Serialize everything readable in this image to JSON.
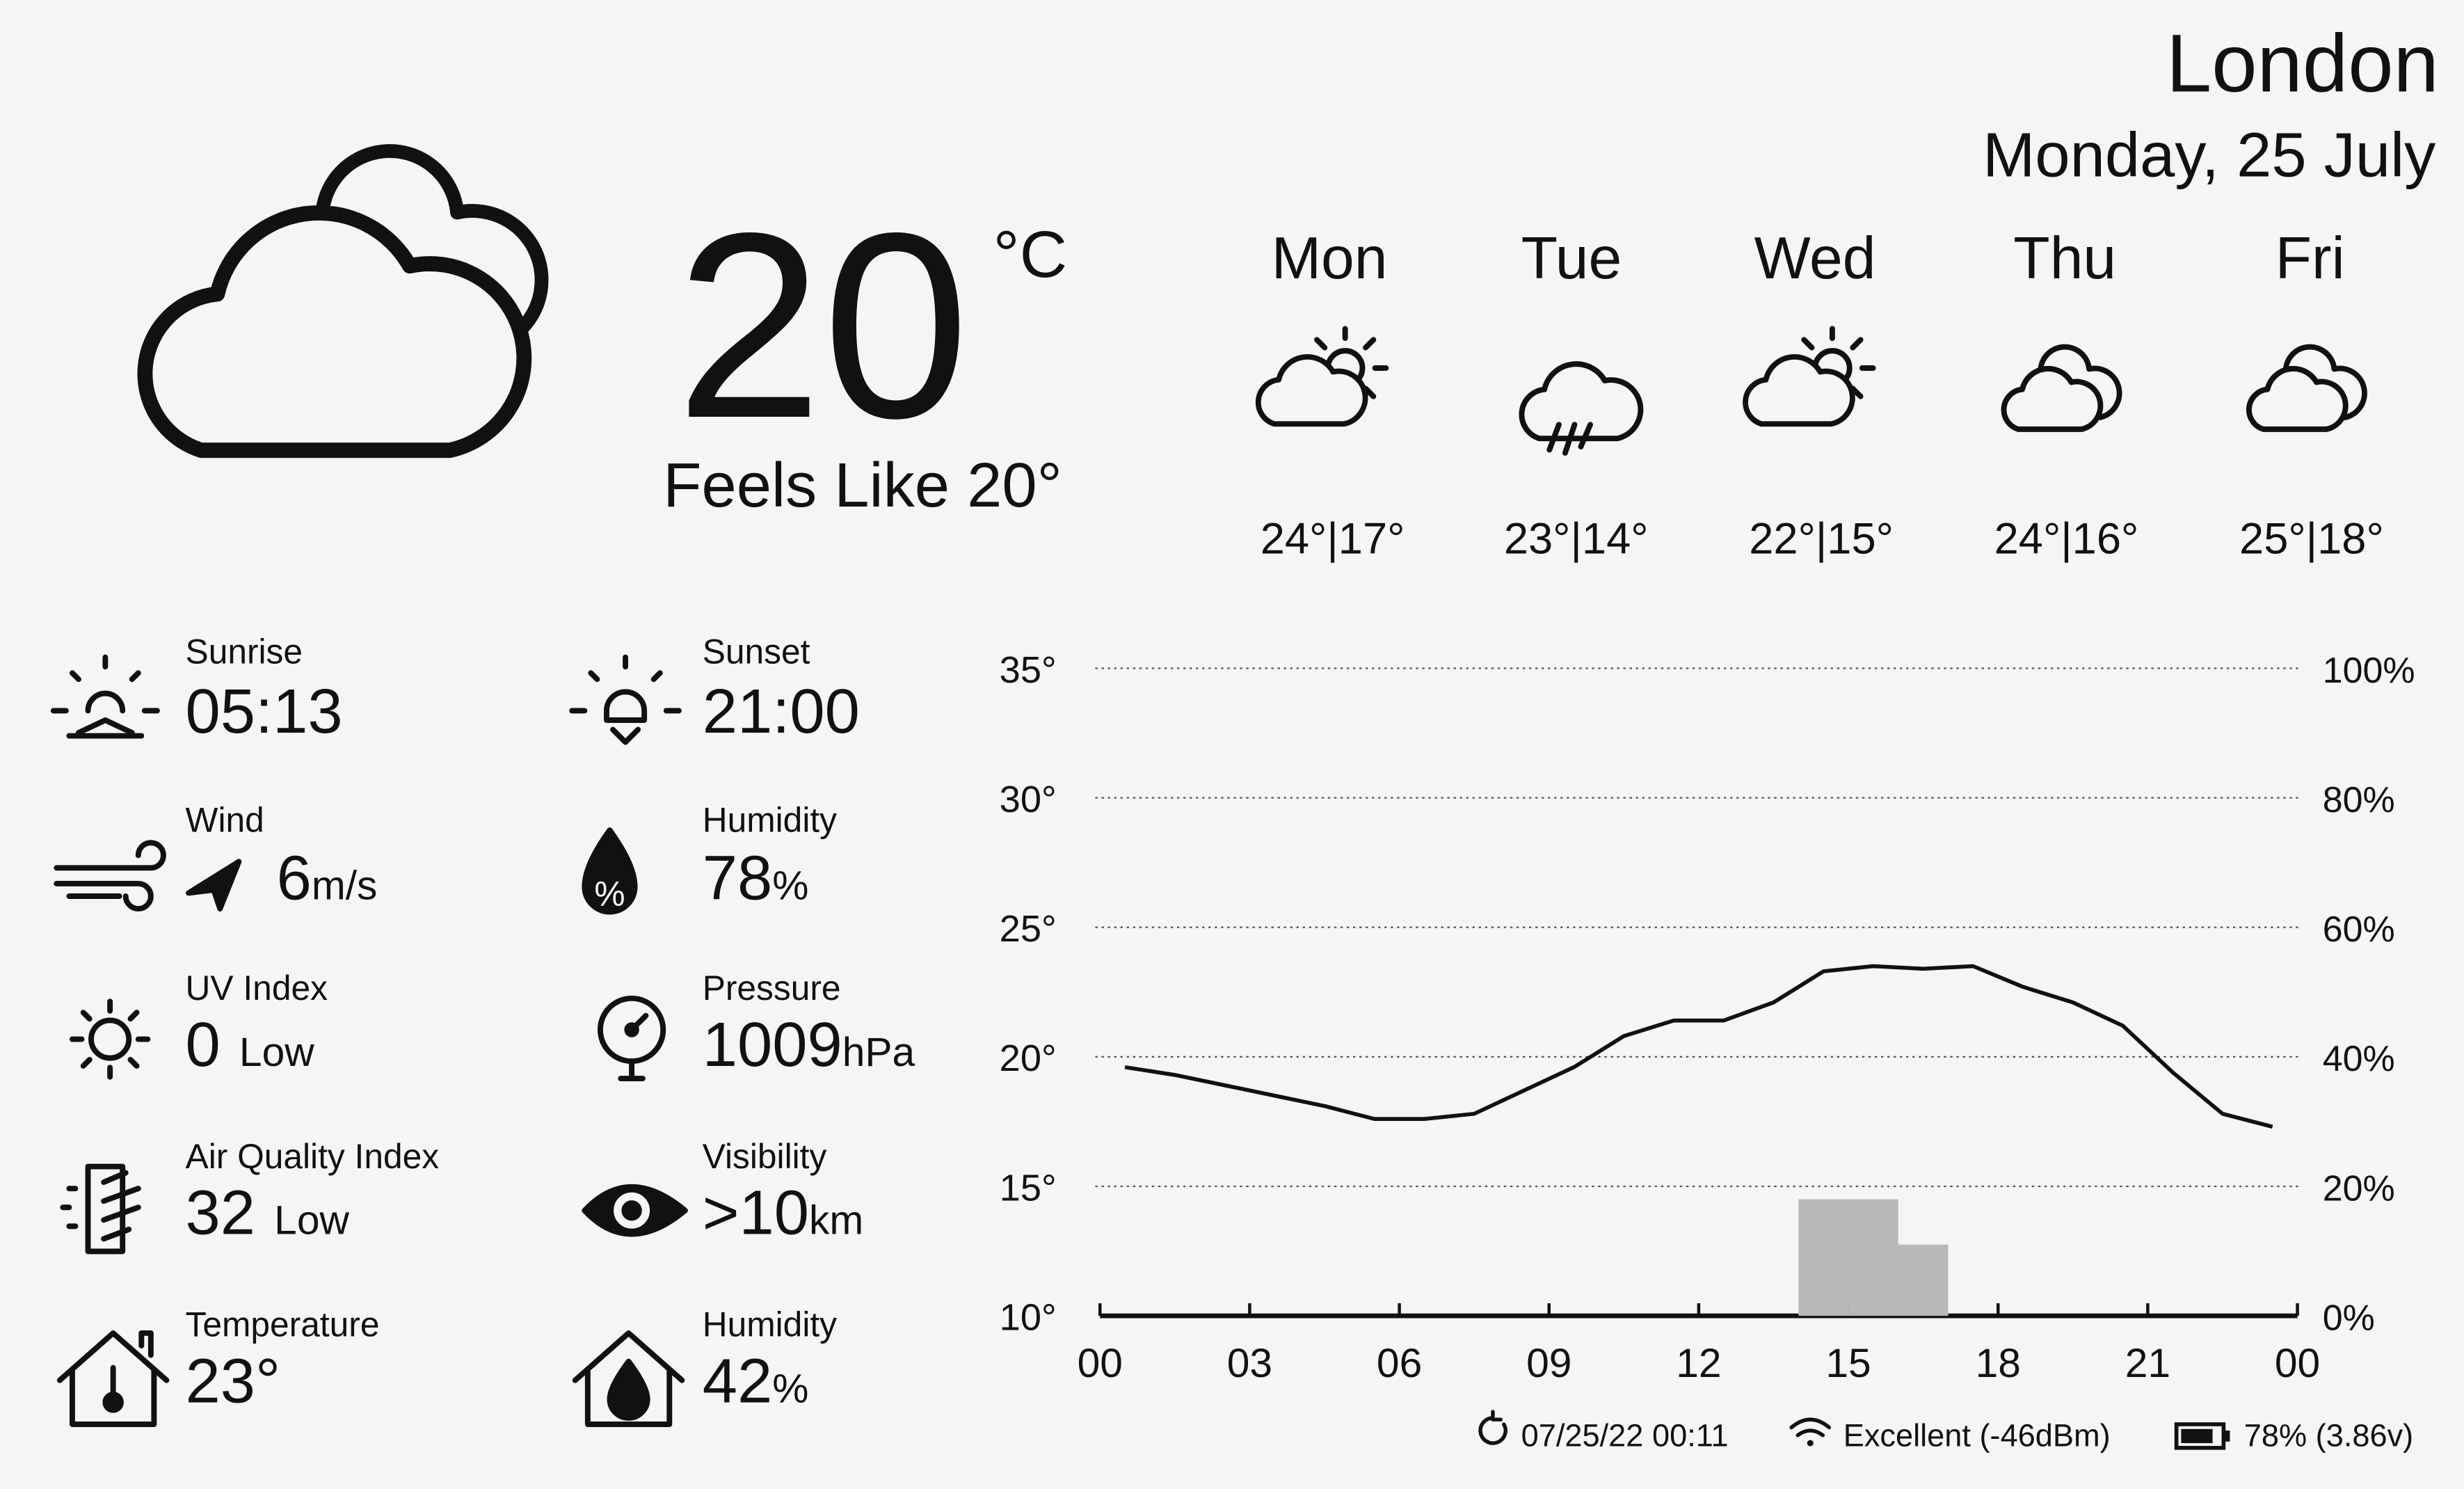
{
  "header": {
    "city": "London",
    "date": "Monday, 25 July"
  },
  "current": {
    "temperature": "20",
    "unit": "°C",
    "feels_like": "Feels Like 20°"
  },
  "forecast": [
    {
      "day": "Mon",
      "temps": "24°|17°"
    },
    {
      "day": "Tue",
      "temps": "23°|14°"
    },
    {
      "day": "Wed",
      "temps": "22°|15°"
    },
    {
      "day": "Thu",
      "temps": "24°|16°"
    },
    {
      "day": "Fri",
      "temps": "25°|18°"
    }
  ],
  "details": [
    {
      "label": "Sunrise",
      "value": "05:13"
    },
    {
      "label": "Sunset",
      "value": "21:00"
    },
    {
      "label": "Wind",
      "value": "6",
      "unit": "m/s"
    },
    {
      "label": "Humidity",
      "value": "78",
      "unit": "%"
    },
    {
      "label": "UV Index",
      "value": "0",
      "level": "Low"
    },
    {
      "label": "Pressure",
      "value": "1009",
      "unit": "hPa"
    },
    {
      "label": "Air Quality Index",
      "value": "32",
      "level": "Low"
    },
    {
      "label": "Visibility",
      "value": ">10",
      "unit": "km"
    },
    {
      "label": "Temperature",
      "value": "23°"
    },
    {
      "label": "Humidity",
      "value": "42",
      "unit": "%"
    }
  ],
  "chart_data": {
    "type": "line",
    "x": [
      0.5,
      1.5,
      2.5,
      3.5,
      4.5,
      5.5,
      6.5,
      7.5,
      8.5,
      9.5,
      10.5,
      11.5,
      12.5,
      13.5,
      14.5,
      15.5,
      16.5,
      17.5,
      18.5,
      19.5,
      20.5,
      21.5,
      22.5,
      23.5
    ],
    "xlim": [
      0,
      24
    ],
    "xticks": [
      {
        "value": 0,
        "label": "00"
      },
      {
        "value": 3,
        "label": "03"
      },
      {
        "value": 6,
        "label": "06"
      },
      {
        "value": 9,
        "label": "09"
      },
      12,
      15,
      18,
      21,
      {
        "value": 24,
        "label": "00"
      }
    ],
    "ylim": [
      10,
      35
    ],
    "yticks": [
      {
        "value": 10,
        "label": "10°"
      },
      {
        "value": 15,
        "label": "15°"
      },
      {
        "value": 20,
        "label": "20°"
      },
      {
        "value": 25,
        "label": "25°"
      },
      {
        "value": 30,
        "label": "30°"
      },
      {
        "value": 35,
        "label": "35°"
      }
    ],
    "y2lim": [
      0,
      100
    ],
    "y2ticks": [
      {
        "value": 0,
        "label": "0%"
      },
      {
        "value": 20,
        "label": "20%"
      },
      {
        "value": 40,
        "label": "40%"
      },
      {
        "value": 60,
        "label": "60%"
      },
      {
        "value": 80,
        "label": "80%"
      },
      {
        "value": 100,
        "label": "100%"
      }
    ],
    "grid": true,
    "series": [
      {
        "color": "#111111",
        "values": [
          19.6,
          19.3,
          18.9,
          18.5,
          18.1,
          17.6,
          17.6,
          17.8,
          18.7,
          19.6,
          20.8,
          21.4,
          21.4,
          22.1,
          23.3,
          23.5,
          23.4,
          23.5,
          22.7,
          22.1,
          21.2,
          19.4,
          17.8,
          17.3
        ]
      },
      {
        "type": "bar",
        "axis": "y2",
        "color": "#b8b8b8",
        "x": [
          14,
          15,
          16
        ],
        "values": [
          18,
          18,
          11
        ]
      }
    ]
  },
  "status": {
    "updated": "07/25/22 00:11",
    "wifi": "Excellent (-46dBm)",
    "battery": "78% (3.86v)"
  }
}
